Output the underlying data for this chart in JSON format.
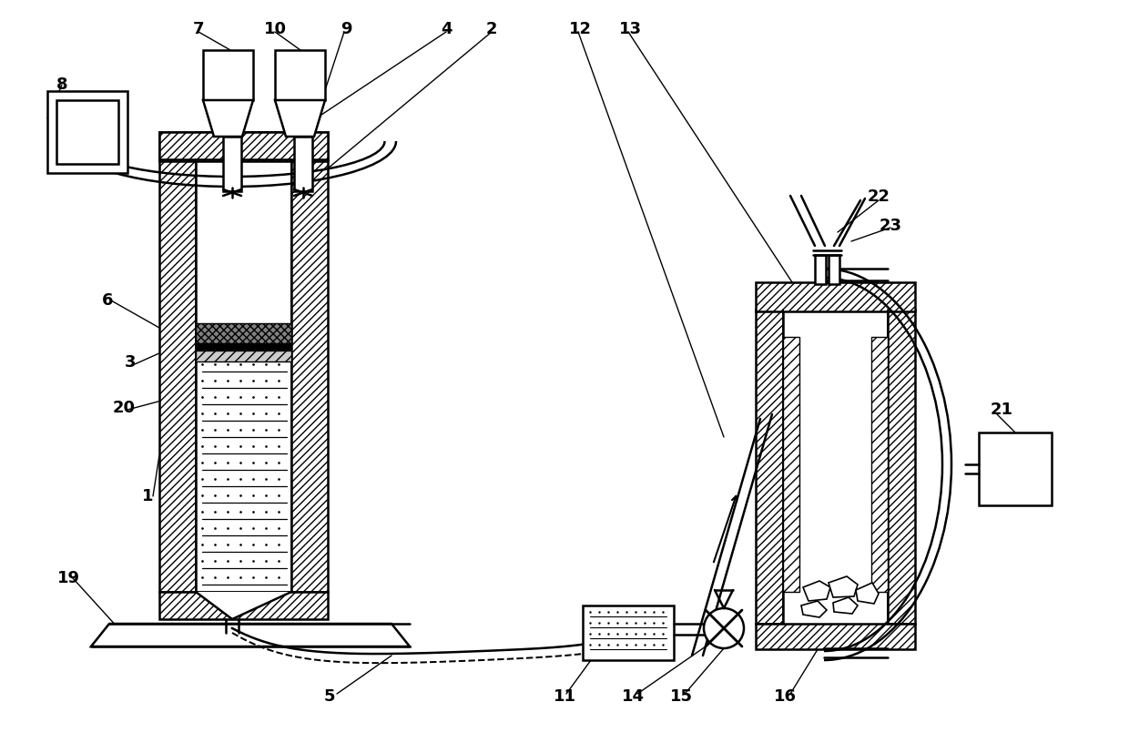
{
  "bg_color": "#ffffff",
  "lc": "#000000",
  "lw": 1.8,
  "fig_w": 12.4,
  "fig_h": 8.27,
  "dpi": 100
}
